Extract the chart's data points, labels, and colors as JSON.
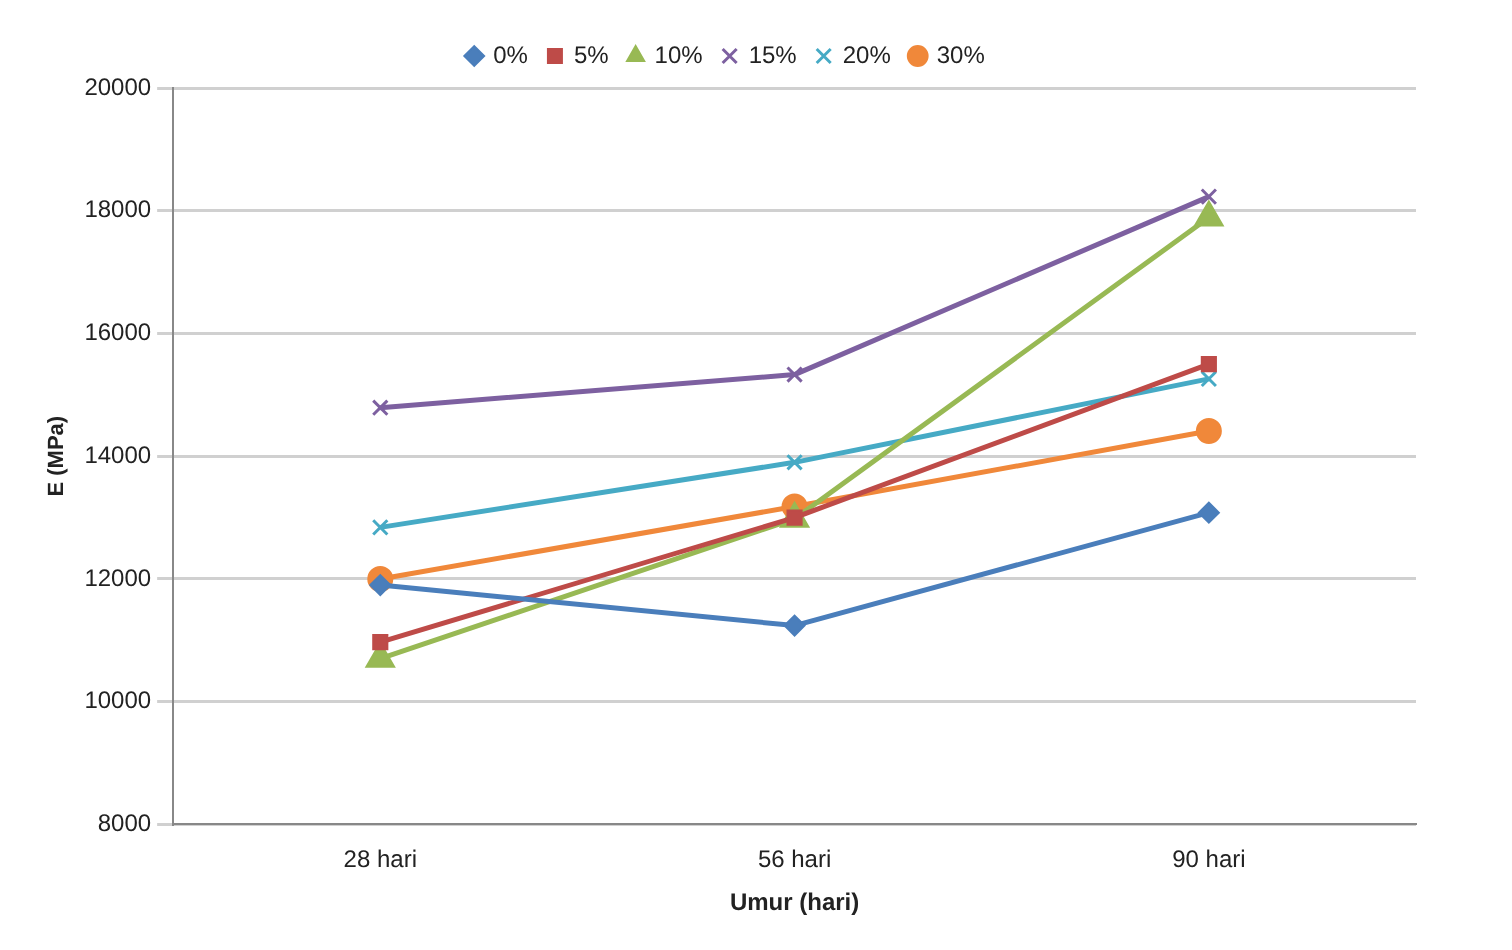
{
  "chart_data": {
    "type": "line",
    "xlabel": "Umur (hari)",
    "ylabel": "E (MPa)",
    "categories": [
      "28 hari",
      "56 hari",
      "90 hari"
    ],
    "series": [
      {
        "name": "0%",
        "color": "#4a7ebb",
        "marker": "diamond",
        "values": [
          11900,
          11240,
          13080
        ]
      },
      {
        "name": "5%",
        "color": "#be4b48",
        "marker": "square",
        "values": [
          10970,
          13000,
          15500
        ]
      },
      {
        "name": "10%",
        "color": "#98b954",
        "marker": "triangle",
        "values": [
          10700,
          12980,
          17890
        ]
      },
      {
        "name": "15%",
        "color": "#7d60a0",
        "marker": "cross",
        "values": [
          14790,
          15330,
          18230
        ]
      },
      {
        "name": "20%",
        "color": "#46aac5",
        "marker": "cross",
        "values": [
          12840,
          13900,
          15260
        ]
      },
      {
        "name": "30%",
        "color": "#f0883a",
        "marker": "circle",
        "values": [
          12000,
          13180,
          14410
        ]
      }
    ],
    "ylim": [
      8000,
      20000
    ],
    "yticks": [
      8000,
      10000,
      12000,
      14000,
      16000,
      18000,
      20000
    ],
    "grid": "y",
    "legend": "top",
    "line_style": "solid"
  }
}
